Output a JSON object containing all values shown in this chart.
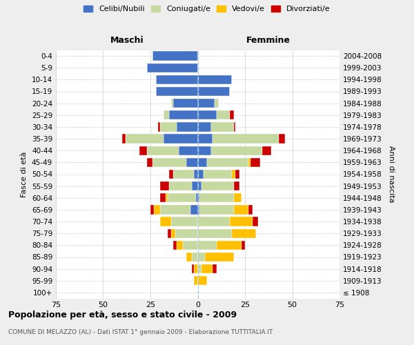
{
  "age_groups": [
    "100+",
    "95-99",
    "90-94",
    "85-89",
    "80-84",
    "75-79",
    "70-74",
    "65-69",
    "60-64",
    "55-59",
    "50-54",
    "45-49",
    "40-44",
    "35-39",
    "30-34",
    "25-29",
    "20-24",
    "15-19",
    "10-14",
    "5-9",
    "0-4"
  ],
  "birth_years": [
    "≤ 1908",
    "1909-1913",
    "1914-1918",
    "1919-1923",
    "1924-1928",
    "1929-1933",
    "1934-1938",
    "1939-1943",
    "1944-1948",
    "1949-1953",
    "1954-1958",
    "1959-1963",
    "1964-1968",
    "1969-1973",
    "1974-1978",
    "1979-1983",
    "1984-1988",
    "1989-1993",
    "1994-1998",
    "1999-2003",
    "2004-2008"
  ],
  "maschi": {
    "celibi": [
      0,
      0,
      0,
      0,
      0,
      0,
      0,
      4,
      1,
      3,
      2,
      6,
      10,
      18,
      11,
      15,
      13,
      22,
      22,
      27,
      24
    ],
    "coniugati": [
      0,
      0,
      0,
      3,
      8,
      12,
      14,
      16,
      15,
      12,
      11,
      18,
      17,
      20,
      9,
      3,
      1,
      0,
      0,
      0,
      0
    ],
    "vedovi": [
      0,
      2,
      2,
      3,
      3,
      2,
      6,
      3,
      1,
      0,
      0,
      0,
      0,
      0,
      0,
      0,
      0,
      0,
      0,
      0,
      0
    ],
    "divorziati": [
      0,
      0,
      1,
      0,
      2,
      2,
      0,
      2,
      3,
      5,
      2,
      3,
      4,
      2,
      1,
      0,
      0,
      0,
      0,
      0,
      0
    ]
  },
  "femmine": {
    "nubili": [
      0,
      0,
      0,
      0,
      0,
      0,
      0,
      1,
      1,
      2,
      3,
      5,
      7,
      8,
      7,
      10,
      9,
      17,
      18,
      0,
      0
    ],
    "coniugate": [
      0,
      0,
      2,
      4,
      10,
      18,
      17,
      18,
      18,
      17,
      15,
      22,
      27,
      35,
      12,
      7,
      2,
      0,
      0,
      0,
      0
    ],
    "vedove": [
      0,
      5,
      6,
      15,
      13,
      13,
      12,
      8,
      4,
      0,
      2,
      1,
      0,
      0,
      0,
      0,
      0,
      0,
      0,
      0,
      0
    ],
    "divorziate": [
      0,
      0,
      2,
      0,
      2,
      0,
      3,
      2,
      0,
      3,
      2,
      5,
      5,
      3,
      1,
      2,
      0,
      0,
      0,
      0,
      0
    ]
  },
  "colors": {
    "celibi": "#4472c4",
    "coniugati": "#c5d9a0",
    "vedovi": "#ffc000",
    "divorziati": "#cc0000"
  },
  "xlim": 75,
  "title": "Popolazione per età, sesso e stato civile - 2009",
  "subtitle": "COMUNE DI MELAZZO (AL) - Dati ISTAT 1° gennaio 2009 - Elaborazione TUTTITALIA.IT",
  "xlabel_left": "Maschi",
  "xlabel_right": "Femmine",
  "ylabel_left": "Fasce di età",
  "ylabel_right": "Anni di nascita",
  "legend_labels": [
    "Celibi/Nubili",
    "Coniugati/e",
    "Vedovi/e",
    "Divorziati/e"
  ],
  "bg_color": "#eeeeee",
  "plot_bg_color": "#ffffff"
}
